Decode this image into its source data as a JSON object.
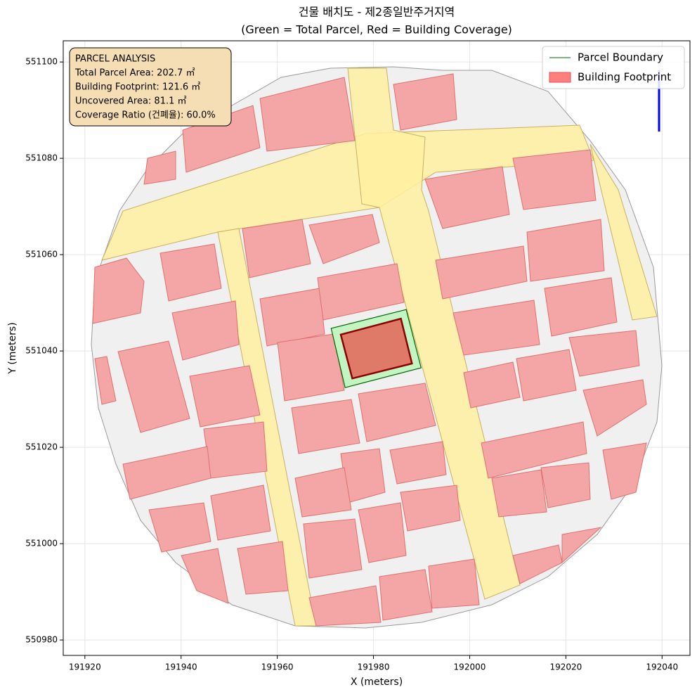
{
  "chart_data": {
    "type": "map",
    "title": "건물 배치도 - 제2종일반주거지역",
    "subtitle": "(Green = Total Parcel, Red = Building Coverage)",
    "x_label": "X (meters)",
    "y_label": "Y (meters)",
    "xlim": [
      191915.5,
      192045.8
    ],
    "ylim": [
      550976.8,
      551104.4
    ],
    "xticks": [
      191920,
      191940,
      191960,
      191980,
      192000,
      192020,
      192040
    ],
    "yticks": [
      550980,
      551000,
      551020,
      551040,
      551060,
      551080,
      551100
    ],
    "grid": true,
    "legend": "upper right",
    "series": [
      {
        "name": "Parcel Boundary",
        "color": "#006400",
        "fill": "#c3f5c3",
        "x": [
          191971.2,
          191986.8,
          191989.9,
          191974.1
        ],
        "y": [
          551044.7,
          551048.6,
          551036.5,
          551032.4
        ]
      },
      {
        "name": "Building Footprint",
        "color": "#8b0000",
        "fill": "#e07a68",
        "x": [
          191973.2,
          191985.7,
          191988.0,
          191975.6
        ],
        "y": [
          551043.4,
          551046.7,
          551037.4,
          551034.3
        ]
      }
    ],
    "annotation": [
      "PARCEL ANALYSIS",
      "Total Parcel Area: 202.7 ㎡",
      "Building Footprint: 121.6 ㎡",
      "Uncovered Area: 81.1 ㎡",
      "Coverage Ratio (건폐율): 60.0%"
    ]
  }
}
